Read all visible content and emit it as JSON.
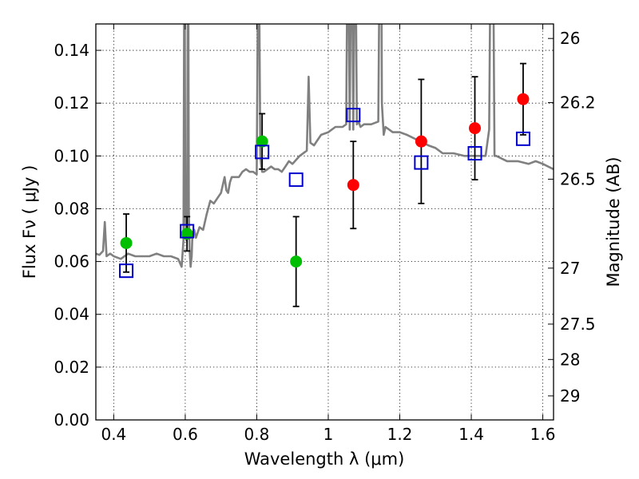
{
  "chart_data": {
    "type": "scatter",
    "title": "",
    "xlabel": "Wavelength  λ (μm)",
    "ylabel": "Flux  Fν  ( μJy )",
    "ylabel_right": "Magnitude (AB)",
    "xlim": [
      0.35,
      1.63
    ],
    "ylim": [
      0.0,
      0.15
    ],
    "xticks": [
      0.4,
      0.6,
      0.8,
      1.0,
      1.2,
      1.4,
      1.6
    ],
    "xtick_labels": [
      "0.4",
      "0.6",
      "0.8",
      "1",
      "1.2",
      "1.4",
      "1.6"
    ],
    "yticks": [
      0.0,
      0.02,
      0.04,
      0.06,
      0.08,
      0.1,
      0.12,
      0.14
    ],
    "ytick_labels": [
      "0.00",
      "0.02",
      "0.04",
      "0.06",
      "0.08",
      "0.10",
      "0.12",
      "0.14"
    ],
    "right_ticks": [
      {
        "label": "26",
        "flux": 0.1445
      },
      {
        "label": "26.2",
        "flux": 0.1202
      },
      {
        "label": "26.5",
        "flux": 0.0912
      },
      {
        "label": "27",
        "flux": 0.0575
      },
      {
        "label": "27.5",
        "flux": 0.0363
      },
      {
        "label": "28",
        "flux": 0.0229
      },
      {
        "label": "29",
        "flux": 0.0091
      }
    ],
    "grid": true,
    "series": [
      {
        "name": "Model spectrum",
        "kind": "line",
        "color": "#808080",
        "x": [
          0.35,
          0.36,
          0.37,
          0.375,
          0.38,
          0.39,
          0.4,
          0.42,
          0.44,
          0.46,
          0.48,
          0.5,
          0.52,
          0.54,
          0.56,
          0.58,
          0.59,
          0.595,
          0.598,
          0.6,
          0.603,
          0.605,
          0.608,
          0.61,
          0.612,
          0.615,
          0.618,
          0.62,
          0.625,
          0.63,
          0.64,
          0.65,
          0.66,
          0.67,
          0.68,
          0.69,
          0.7,
          0.71,
          0.715,
          0.72,
          0.725,
          0.73,
          0.74,
          0.75,
          0.76,
          0.77,
          0.78,
          0.79,
          0.8,
          0.805,
          0.81,
          0.812,
          0.815,
          0.82,
          0.83,
          0.84,
          0.85,
          0.86,
          0.87,
          0.88,
          0.89,
          0.9,
          0.92,
          0.94,
          0.945,
          0.95,
          0.96,
          0.97,
          0.98,
          1.0,
          1.02,
          1.04,
          1.05,
          1.055,
          1.06,
          1.065,
          1.07,
          1.075,
          1.08,
          1.085,
          1.09,
          1.1,
          1.12,
          1.14,
          1.145,
          1.148,
          1.15,
          1.155,
          1.16,
          1.18,
          1.2,
          1.22,
          1.25,
          1.28,
          1.3,
          1.32,
          1.35,
          1.38,
          1.4,
          1.42,
          1.44,
          1.45,
          1.455,
          1.46,
          1.465,
          1.47,
          1.5,
          1.53,
          1.56,
          1.58,
          1.6,
          1.63
        ],
        "y": [
          0.063,
          0.0625,
          0.064,
          0.075,
          0.062,
          0.063,
          0.062,
          0.061,
          0.063,
          0.062,
          0.062,
          0.062,
          0.063,
          0.062,
          0.062,
          0.061,
          0.058,
          0.068,
          0.2,
          0.08,
          0.068,
          0.07,
          0.2,
          0.08,
          0.065,
          0.058,
          0.062,
          0.07,
          0.072,
          0.069,
          0.073,
          0.072,
          0.078,
          0.083,
          0.082,
          0.084,
          0.086,
          0.092,
          0.087,
          0.086,
          0.09,
          0.092,
          0.092,
          0.092,
          0.094,
          0.095,
          0.094,
          0.094,
          0.093,
          0.2,
          0.1,
          0.097,
          0.094,
          0.094,
          0.095,
          0.096,
          0.095,
          0.095,
          0.094,
          0.096,
          0.098,
          0.097,
          0.1,
          0.102,
          0.13,
          0.105,
          0.104,
          0.106,
          0.108,
          0.109,
          0.111,
          0.111,
          0.112,
          0.2,
          0.11,
          0.2,
          0.11,
          0.2,
          0.112,
          0.113,
          0.111,
          0.112,
          0.112,
          0.113,
          0.2,
          0.2,
          0.12,
          0.108,
          0.111,
          0.109,
          0.109,
          0.108,
          0.106,
          0.104,
          0.103,
          0.101,
          0.101,
          0.1,
          0.1,
          0.1,
          0.1,
          0.11,
          0.2,
          0.2,
          0.1,
          0.1,
          0.098,
          0.098,
          0.097,
          0.098,
          0.097,
          0.095
        ]
      },
      {
        "name": "Detections (green)",
        "kind": "points",
        "marker": "circle",
        "color": "#00bf00",
        "x": [
          0.435,
          0.605,
          0.815,
          0.91
        ],
        "y": [
          0.067,
          0.0705,
          0.1055,
          0.06
        ],
        "yerr": [
          0.011,
          0.0065,
          0.0105,
          0.017
        ]
      },
      {
        "name": "Detections (red)",
        "kind": "points",
        "marker": "circle",
        "color": "#ff0000",
        "x": [
          1.07,
          1.26,
          1.41,
          1.545
        ],
        "y": [
          0.089,
          0.1055,
          0.1105,
          0.1215
        ],
        "yerr": [
          0.0165,
          0.0235,
          0.0195,
          0.0135
        ]
      },
      {
        "name": "Model photometry",
        "kind": "points",
        "marker": "open-square",
        "color": "#0000cc",
        "x": [
          0.435,
          0.605,
          0.815,
          0.91,
          1.07,
          1.26,
          1.41,
          1.545
        ],
        "y": [
          0.0565,
          0.0715,
          0.1015,
          0.091,
          0.1155,
          0.0975,
          0.101,
          0.1065
        ]
      }
    ]
  }
}
